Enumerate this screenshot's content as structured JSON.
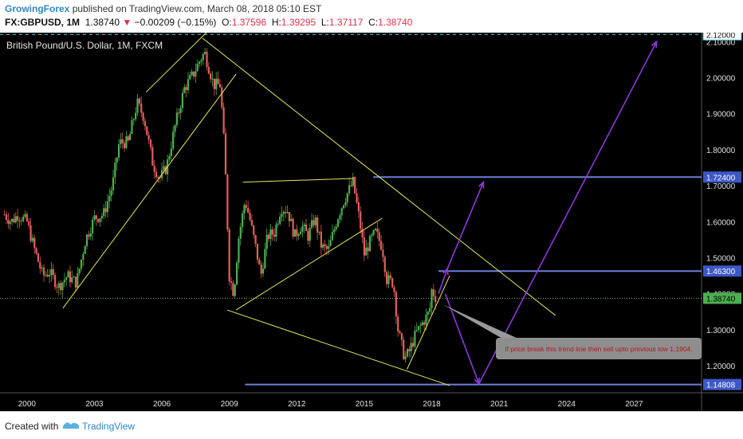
{
  "header": {
    "author": "GrowingForex",
    "published_text": "published on TradingView.com, March 08, 2018 05:10 EST",
    "symbol": "FX:GBPUSD, 1M",
    "last_price": "1.38740",
    "change": "−0.00209 (−0.15%)",
    "o_label": "O:",
    "o_value": "1.37596",
    "h_label": "H:",
    "h_value": "1.39295",
    "l_label": "L:",
    "l_value": "1.37117",
    "c_label": "C:",
    "c_value": "1.38740"
  },
  "chart_data": {
    "type": "candlestick",
    "title": "British Pound/U.S. Dollar, 1M, FXCM",
    "ylim": [
      1.125,
      2.125
    ],
    "xlim": [
      1998.8,
      2030.0
    ],
    "y_ticks": [
      "2.10000",
      "2.00000",
      "1.90000",
      "1.80000",
      "1.70000",
      "1.60000",
      "1.50000",
      "1.40000",
      "1.30000",
      "1.20000"
    ],
    "x_ticks": [
      "2000",
      "2003",
      "2006",
      "2009",
      "2012",
      "2015",
      "2018",
      "2021",
      "2024",
      "2027"
    ],
    "price_labels": [
      {
        "text": "2.12000",
        "value": 2.12,
        "style": "dashed"
      },
      {
        "text": "1.72400",
        "value": 1.724,
        "style": "blue"
      },
      {
        "text": "1.46300",
        "value": 1.463,
        "style": "blue"
      },
      {
        "text": "1.38740",
        "value": 1.3874,
        "style": "current"
      },
      {
        "text": "1.14808",
        "value": 1.14808,
        "style": "blue"
      }
    ],
    "current_price": 1.3874,
    "price_path": [
      [
        1999.0,
        1.62
      ],
      [
        1999.3,
        1.6
      ],
      [
        1999.6,
        1.62
      ],
      [
        2000.0,
        1.6
      ],
      [
        2000.3,
        1.53
      ],
      [
        2000.7,
        1.45
      ],
      [
        2001.0,
        1.46
      ],
      [
        2001.4,
        1.42
      ],
      [
        2001.8,
        1.45
      ],
      [
        2002.2,
        1.43
      ],
      [
        2002.6,
        1.55
      ],
      [
        2003.0,
        1.61
      ],
      [
        2003.4,
        1.62
      ],
      [
        2003.8,
        1.7
      ],
      [
        2004.1,
        1.82
      ],
      [
        2004.5,
        1.82
      ],
      [
        2004.9,
        1.93
      ],
      [
        2005.2,
        1.89
      ],
      [
        2005.6,
        1.76
      ],
      [
        2005.9,
        1.72
      ],
      [
        2006.2,
        1.75
      ],
      [
        2006.6,
        1.87
      ],
      [
        2007.0,
        1.97
      ],
      [
        2007.4,
        2.01
      ],
      [
        2007.7,
        2.05
      ],
      [
        2007.9,
        2.07
      ],
      [
        2008.3,
        1.98
      ],
      [
        2008.6,
        1.98
      ],
      [
        2008.8,
        1.78
      ],
      [
        2009.0,
        1.45
      ],
      [
        2009.2,
        1.4
      ],
      [
        2009.4,
        1.55
      ],
      [
        2009.7,
        1.66
      ],
      [
        2009.9,
        1.61
      ],
      [
        2010.2,
        1.52
      ],
      [
        2010.4,
        1.45
      ],
      [
        2010.7,
        1.56
      ],
      [
        2011.0,
        1.57
      ],
      [
        2011.3,
        1.64
      ],
      [
        2011.6,
        1.63
      ],
      [
        2011.9,
        1.56
      ],
      [
        2012.2,
        1.59
      ],
      [
        2012.5,
        1.56
      ],
      [
        2012.8,
        1.61
      ],
      [
        2013.1,
        1.53
      ],
      [
        2013.4,
        1.52
      ],
      [
        2013.8,
        1.61
      ],
      [
        2014.1,
        1.66
      ],
      [
        2014.5,
        1.71
      ],
      [
        2014.8,
        1.6
      ],
      [
        2015.0,
        1.51
      ],
      [
        2015.3,
        1.55
      ],
      [
        2015.5,
        1.57
      ],
      [
        2015.8,
        1.53
      ],
      [
        2016.0,
        1.44
      ],
      [
        2016.3,
        1.43
      ],
      [
        2016.5,
        1.3
      ],
      [
        2016.8,
        1.22
      ],
      [
        2017.0,
        1.24
      ],
      [
        2017.3,
        1.29
      ],
      [
        2017.6,
        1.32
      ],
      [
        2017.9,
        1.35
      ],
      [
        2018.0,
        1.41
      ],
      [
        2018.2,
        1.3874
      ]
    ]
  },
  "annotation": {
    "text": "If price break this trend line then sell upto previous low 1.1904."
  },
  "footer": {
    "created_with": "Created with",
    "brand": "TradingView"
  },
  "colors": {
    "background": "#000000",
    "up_candle": "#4caf50",
    "down_candle": "#e0605a",
    "trendline": "#e8e85a",
    "level": "#6b7fd8",
    "projection": "#8b3ad8",
    "dashed_level": "#3ab5c8",
    "axis_text": "#e0e0e0"
  }
}
